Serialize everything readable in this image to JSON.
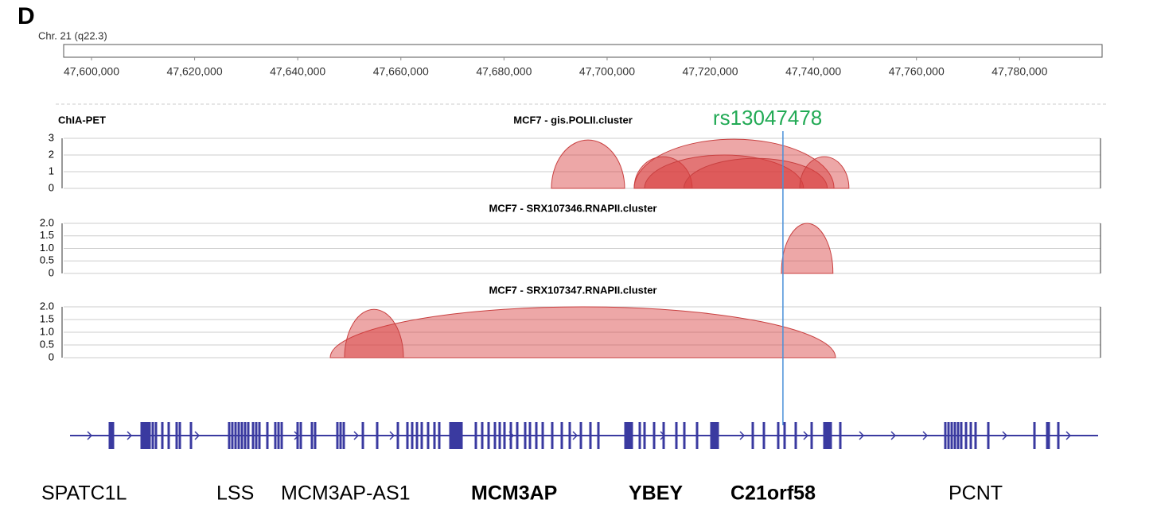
{
  "panel_label": "D",
  "chromosome": "Chr. 21 (q22.3)",
  "ruler": {
    "xlim": [
      47594600,
      47796000
    ],
    "xticks": [
      {
        "value": 47600000,
        "label": "47,600,000"
      },
      {
        "value": 47620000,
        "label": "47,620,000"
      },
      {
        "value": 47640000,
        "label": "47,640,000"
      },
      {
        "value": 47660000,
        "label": "47,660,000"
      },
      {
        "value": 47680000,
        "label": "47,680,000"
      },
      {
        "value": 47700000,
        "label": "47,700,000"
      },
      {
        "value": 47720000,
        "label": "47,720,000"
      },
      {
        "value": 47740000,
        "label": "47,740,000"
      },
      {
        "value": 47760000,
        "label": "47,760,000"
      },
      {
        "value": 47780000,
        "label": "47,780,000"
      }
    ]
  },
  "group": "ChIA-PET",
  "tracks": [
    {
      "title": "MCF7 - gis.POLII.cluster",
      "ylim": [
        0,
        3
      ],
      "yticks": [
        0,
        1,
        2,
        3
      ],
      "arcs": [
        {
          "start": 47689200,
          "end": 47703400,
          "height": 2.9
        },
        {
          "start": 47705250,
          "end": 47744000,
          "height": 2.95
        },
        {
          "start": 47705250,
          "end": 47716500,
          "height": 1.9
        },
        {
          "start": 47707250,
          "end": 47738100,
          "height": 2
        },
        {
          "start": 47714900,
          "end": 47742700,
          "height": 1.8
        },
        {
          "start": 47737350,
          "end": 47746900,
          "height": 1.9
        }
      ]
    },
    {
      "title": "MCF7 - SRX107346.RNAPII.cluster",
      "ylim": [
        0,
        2
      ],
      "yticks": [
        0,
        0.5,
        {
          "value": 1,
          "label": "1.0"
        },
        1.5,
        {
          "value": 2,
          "label": "2.0"
        }
      ],
      "arcs": [
        {
          "start": 47733800,
          "end": 47743800,
          "height": 2
        }
      ]
    },
    {
      "title": "MCF7 - SRX107347.RNAPII.cluster",
      "ylim": [
        0,
        2
      ],
      "yticks": [
        0,
        0.5,
        {
          "value": 1,
          "label": "1.0"
        },
        1.5,
        {
          "value": 2,
          "label": "2.0"
        }
      ],
      "arcs": [
        {
          "start": 47646300,
          "end": 47744300,
          "height": 2
        },
        {
          "start": 47649070,
          "end": 47660500,
          "height": 1.9
        }
      ]
    }
  ],
  "snp": {
    "label": "rs13047478",
    "position": 47734100
  },
  "genes": [
    {
      "name": "SPATC1L",
      "bold": false
    },
    {
      "name": "LSS",
      "bold": false
    },
    {
      "name": "MCM3AP-AS1",
      "bold": false
    },
    {
      "name": "MCM3AP",
      "bold": true
    },
    {
      "name": "YBEY",
      "bold": true
    },
    {
      "name": "C21orf58",
      "bold": true
    },
    {
      "name": "PCNT",
      "bold": false
    }
  ]
}
